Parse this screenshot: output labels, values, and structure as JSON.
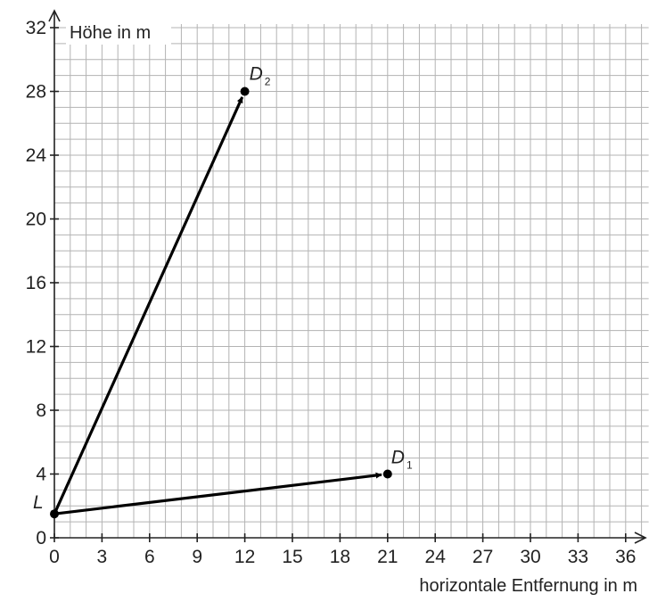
{
  "chart_data": {
    "type": "vector-plot",
    "title": "",
    "xlabel": "horizontale Entfernung in m",
    "ylabel": "Höhe in m",
    "xlim": [
      0,
      37
    ],
    "ylim": [
      0,
      32
    ],
    "x_ticks": [
      0,
      3,
      6,
      9,
      12,
      15,
      18,
      21,
      24,
      27,
      30,
      33,
      36
    ],
    "y_ticks": [
      0,
      4,
      8,
      12,
      16,
      20,
      24,
      28,
      32
    ],
    "grid": true,
    "points": [
      {
        "id": "L",
        "label": "L",
        "sub": "",
        "x": 0,
        "y": 1.5
      },
      {
        "id": "D1",
        "label": "D",
        "sub": "1",
        "x": 21,
        "y": 4
      },
      {
        "id": "D2",
        "label": "D",
        "sub": "2",
        "x": 12,
        "y": 28
      }
    ],
    "vectors": [
      {
        "from": "L",
        "to": "D1"
      },
      {
        "from": "L",
        "to": "D2"
      }
    ]
  }
}
